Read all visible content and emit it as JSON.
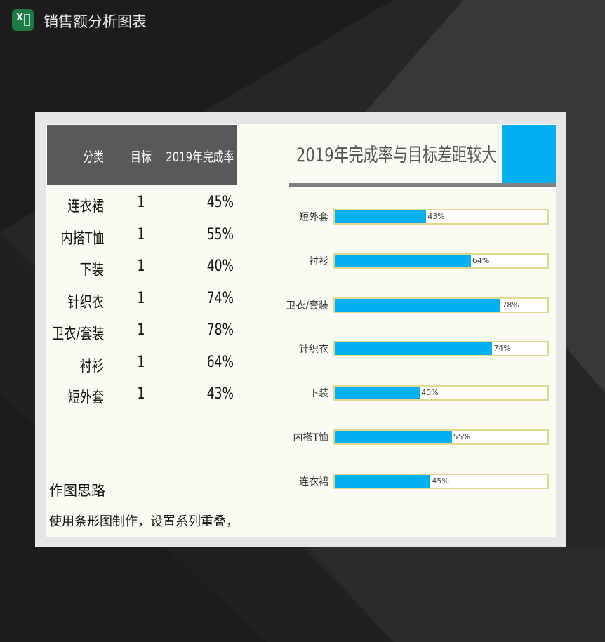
{
  "app": {
    "title": "销售额分析图表",
    "icon": "excel-icon"
  },
  "table": {
    "headers": [
      "分类",
      "目标",
      "2019年完成率"
    ],
    "rows": [
      [
        "连衣裙",
        "1",
        "45%"
      ],
      [
        "内搭T恤",
        "1",
        "55%"
      ],
      [
        "下装",
        "1",
        "40%"
      ],
      [
        "针织衣",
        "1",
        "74%"
      ],
      [
        "卫衣/套装",
        "1",
        "78%"
      ],
      [
        "衬衫",
        "1",
        "64%"
      ],
      [
        "短外套",
        "1",
        "43%"
      ]
    ]
  },
  "notes": {
    "heading": "作图思路",
    "text": "使用条形图制作，设置系列重叠，"
  },
  "chart_data": {
    "type": "bar",
    "orientation": "horizontal",
    "title": "2019年完成率与目标差距较大",
    "categories": [
      "短外套",
      "衬衫",
      "卫衣/套装",
      "针织衣",
      "下装",
      "内搭T恤",
      "连衣裙"
    ],
    "values": [
      0.43,
      0.64,
      0.78,
      0.74,
      0.4,
      0.55,
      0.45
    ],
    "labels": [
      "43%",
      "64%",
      "78%",
      "74%",
      "40%",
      "55%",
      "45%"
    ],
    "target": 1,
    "xlim": [
      0,
      1
    ],
    "colors": {
      "fill": "#00b0f0",
      "target": "#e3d98c"
    }
  }
}
